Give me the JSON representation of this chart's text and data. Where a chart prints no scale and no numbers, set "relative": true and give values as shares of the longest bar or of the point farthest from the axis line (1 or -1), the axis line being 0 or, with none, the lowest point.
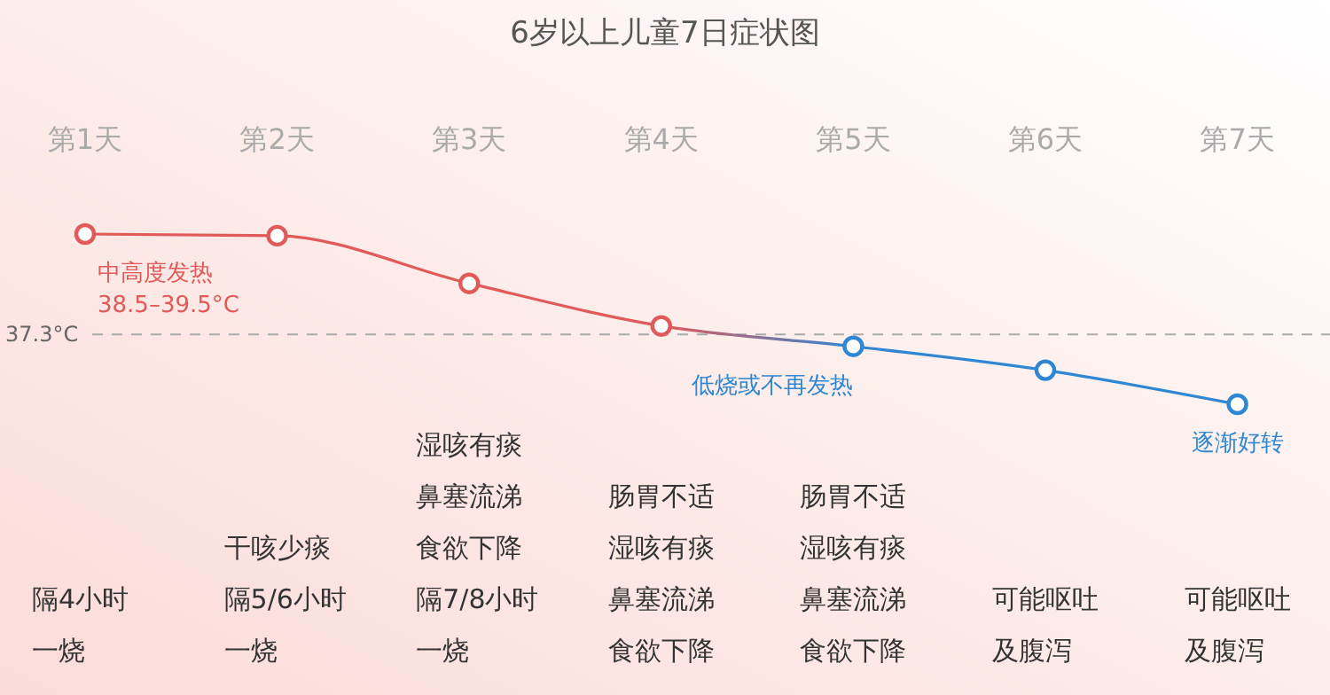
{
  "chart_data": {
    "type": "line",
    "title": "6岁以上儿童7日症状图",
    "relative": true,
    "categories": [
      "第1天",
      "第2天",
      "第3天",
      "第4天",
      "第5天",
      "第6天",
      "第7天"
    ],
    "series": [
      {
        "values": [
          1,
          0.99,
          0.71,
          0.46,
          0.34,
          0.2,
          0
        ],
        "colors": [
          "#e05a5a",
          "#e05a5a",
          "#e05a5a",
          "#e05a5a",
          "#2f86d2",
          "#2f86d2",
          "#2f86d2"
        ]
      }
    ],
    "marker": "circle",
    "line_style": "solid",
    "grid": false,
    "ref_lines": [
      {
        "axis": "y",
        "value": 0.41,
        "label": "37.3°C",
        "color": "#aaaaaa",
        "line_style": "dashed"
      }
    ],
    "annotations": [
      {
        "text": "中高度发热\n38.5–39.5°C",
        "x": "第1天",
        "y": 1
      },
      {
        "text": "低烧或不再发热",
        "x": "第5天",
        "y": 0.34
      },
      {
        "text": "逐渐好转",
        "x": "第7天",
        "y": 0
      },
      "隔4小时一烧",
      "干咳少痰隔5/6小时一烧",
      "湿咳有痰鼻塞流涕食欲下降隔7/8小时一烧",
      "肠胃不适湿咳有痰鼻塞流涕食欲下降",
      "肠胃不适湿咳有痰鼻塞流涕食欲下降",
      "可能呕吐及腹泻",
      "可能呕吐及腹泻"
    ]
  }
}
